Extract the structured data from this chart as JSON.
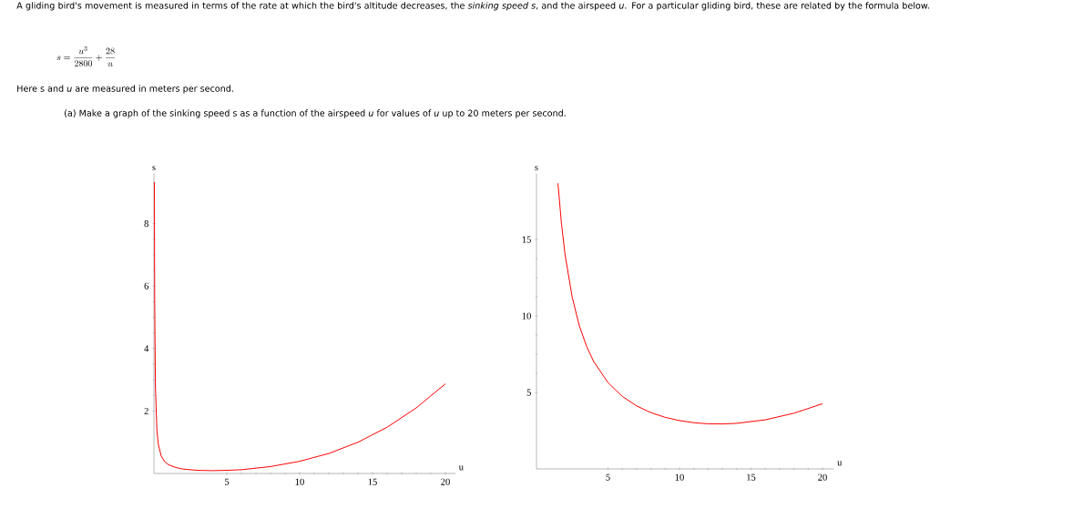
{
  "chart_data": [
    {
      "type": "line",
      "xlabel": "u",
      "ylabel": "s",
      "color": "#ff0000",
      "annotations": [
        "A gliding bird's movement is measured in terms of the rate at which the bird's altitude decreases, the *sinking speed s*, and the airspeed *u*. For a particular gliding bird, these are related by the formula below.",
        "s = \\frac{u^3}{2800} + \\frac{28}{u}",
        "Here s and *u* are measured in meters per second.",
        "(a) Make a graph of the sinking speed s as a function of the airspeed *u* for values of *u* up to 20 meters per second."
      ],
      "x": [
        0.03,
        0.05,
        0.1,
        0.2,
        0.3,
        0.5,
        0.75,
        1,
        1.5,
        2,
        3,
        4,
        5,
        6,
        8,
        10,
        12,
        14,
        16,
        18,
        20
      ],
      "values": [
        9.33,
        5.6,
        2.8,
        1.4,
        0.93,
        0.56,
        0.37,
        0.28,
        0.19,
        0.14,
        0.1,
        0.09,
        0.1,
        0.12,
        0.22,
        0.39,
        0.64,
        1.0,
        1.48,
        2.1,
        2.87
      ],
      "xlim": [
        0,
        20.7
      ],
      "ylim": [
        0,
        9.6
      ],
      "xticks": [
        5,
        10,
        15,
        20
      ],
      "yticks": [
        2,
        4,
        6,
        8
      ],
      "grid": false,
      "marker": "none",
      "line_style": "solid"
    },
    {
      "type": "line",
      "xlabel": "u",
      "ylabel": "s",
      "color": "#ff0000",
      "x": [
        1.5,
        1.75,
        2,
        2.5,
        3,
        3.5,
        4,
        5,
        6,
        7,
        8,
        9,
        10,
        11,
        12,
        13,
        14,
        16,
        18,
        20
      ],
      "values": [
        18.67,
        16.0,
        14.0,
        11.21,
        9.34,
        8.02,
        7.02,
        5.64,
        4.74,
        4.12,
        3.68,
        3.37,
        3.16,
        3.02,
        2.95,
        2.94,
        2.98,
        3.21,
        3.64,
        4.26
      ],
      "xlim": [
        0,
        20.8
      ],
      "ylim": [
        0,
        19.3
      ],
      "xticks": [
        5,
        10,
        15,
        20
      ],
      "yticks": [
        5,
        10,
        15
      ],
      "grid": false,
      "marker": "none",
      "line_style": "solid"
    }
  ]
}
